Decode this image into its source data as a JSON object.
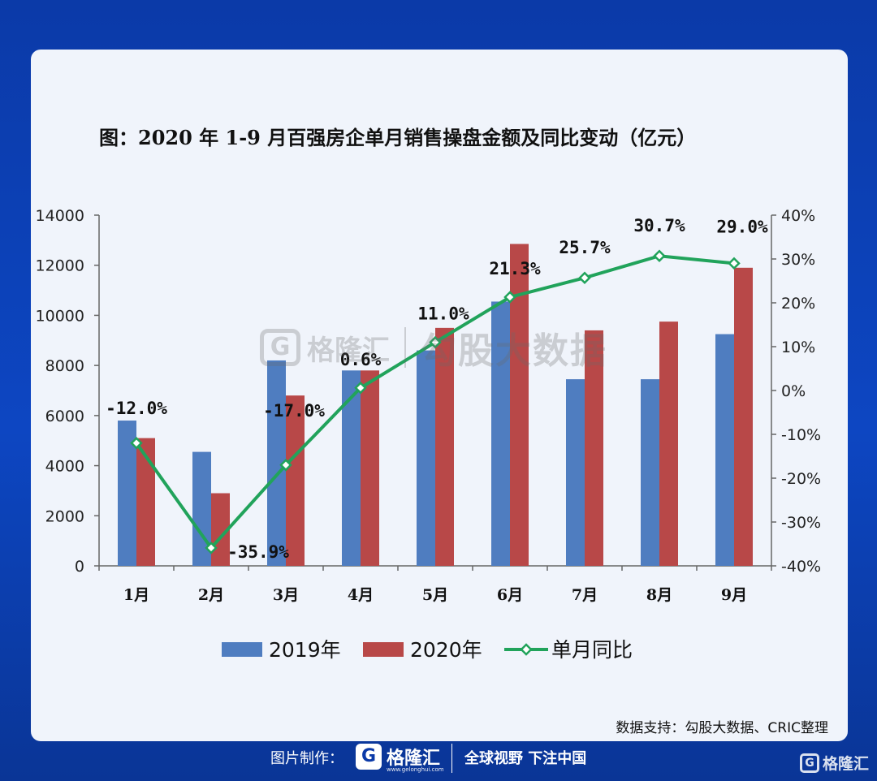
{
  "chart_data": {
    "type": "bar",
    "title": "图：2020 年 1-9 月百强房企单月销售操盘金额及同比变动（亿元）",
    "categories": [
      "1月",
      "2月",
      "3月",
      "4月",
      "5月",
      "6月",
      "7月",
      "8月",
      "9月"
    ],
    "series": [
      {
        "name": "2019年",
        "type": "bar",
        "axis": "left",
        "color": "#4f7dc0",
        "values": [
          5800,
          4550,
          8200,
          7800,
          8600,
          10550,
          7450,
          7450,
          9250
        ]
      },
      {
        "name": "2020年",
        "type": "bar",
        "axis": "left",
        "color": "#b84848",
        "values": [
          5100,
          2900,
          6800,
          7800,
          9500,
          12850,
          9400,
          9750,
          11900
        ]
      },
      {
        "name": "单月同比",
        "type": "line",
        "axis": "right",
        "color": "#21a35b",
        "values": [
          -12.0,
          -35.9,
          -17.0,
          0.6,
          11.0,
          21.3,
          25.7,
          30.7,
          29.0
        ],
        "labels": [
          "-12.0%",
          "-35.9%",
          "-17.0%",
          "0.6%",
          "11.0%",
          "21.3%",
          "25.7%",
          "30.7%",
          "29.0%"
        ]
      }
    ],
    "ylim_left": [
      0,
      14000
    ],
    "yticks_left": [
      "0",
      "2000",
      "4000",
      "6000",
      "8000",
      "10000",
      "12000",
      "14000"
    ],
    "ylim_right": [
      -40,
      40
    ],
    "yticks_right": [
      "-40%",
      "-30%",
      "-20%",
      "-10%",
      "0%",
      "10%",
      "20%",
      "30%",
      "40%"
    ],
    "grid": false,
    "legend_position": "bottom"
  },
  "watermark": {
    "logo_glyph": "G",
    "brand": "格隆汇",
    "text": "勾股大数据"
  },
  "source": "数据支持：勾股大数据、CRIC整理",
  "footer": {
    "label": "图片制作：",
    "logo_glyph": "G",
    "brand": "格隆汇",
    "url": "www.gelonghui.com",
    "slogan": "全球视野 下注中国"
  },
  "corner_brand": "格隆汇"
}
